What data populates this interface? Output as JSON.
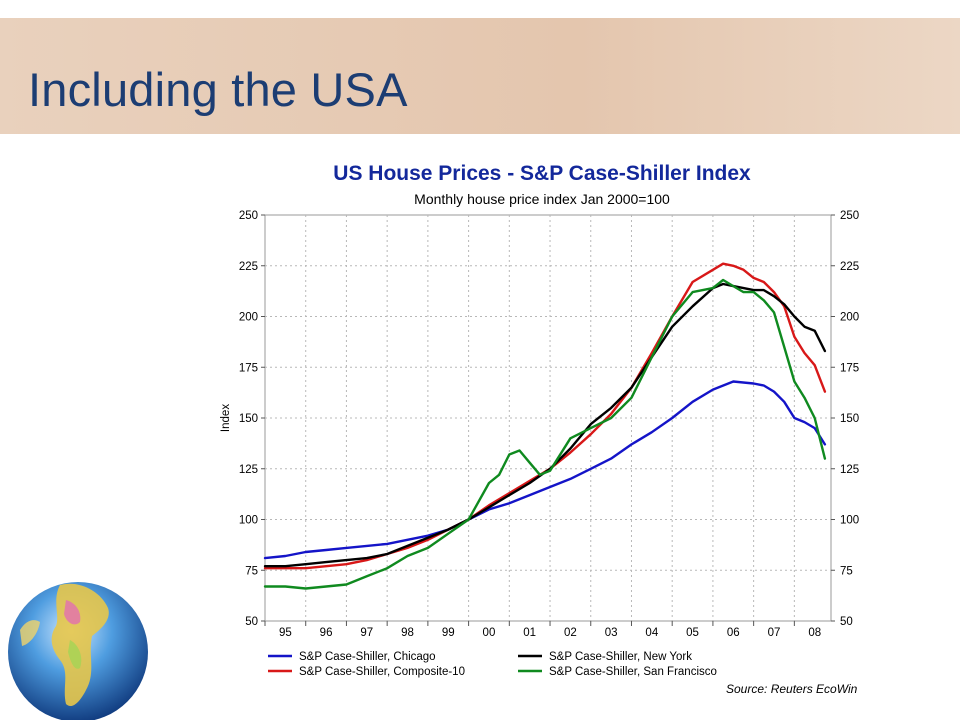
{
  "slide": {
    "title": "Including the USA"
  },
  "colors": {
    "chicago": "#1414c8",
    "composite10": "#d81818",
    "new_york": "#000000",
    "san_francisco": "#0f8a1f",
    "chart_title": "#13289b",
    "slide_title": "#1c3d73"
  },
  "chart_data": {
    "type": "line",
    "title": "US House Prices - S&P Case-Shiller Index",
    "subtitle": "Monthly house price index Jan 2000=100",
    "ylabel": "Index",
    "source": "Source: Reuters EcoWin",
    "ylim": [
      50,
      250
    ],
    "yticks": [
      50,
      75,
      100,
      125,
      150,
      175,
      200,
      225,
      250
    ],
    "xlim": [
      1995.0,
      2008.9
    ],
    "xtick_labels": [
      "95",
      "96",
      "97",
      "98",
      "99",
      "00",
      "01",
      "02",
      "03",
      "04",
      "05",
      "06",
      "07",
      "08"
    ],
    "grid": true,
    "legend_position": "bottom",
    "series": [
      {
        "name": "S&P Case-Shiller, Chicago",
        "color": "#1414c8",
        "x": [
          1995.0,
          1995.5,
          1996.0,
          1996.5,
          1997.0,
          1997.5,
          1998.0,
          1998.5,
          1999.0,
          1999.5,
          2000.0,
          2000.5,
          2001.0,
          2001.5,
          2002.0,
          2002.5,
          2003.0,
          2003.5,
          2004.0,
          2004.5,
          2005.0,
          2005.5,
          2006.0,
          2006.5,
          2007.0,
          2007.25,
          2007.5,
          2007.75,
          2008.0,
          2008.25,
          2008.5,
          2008.75
        ],
        "y": [
          81,
          82,
          84,
          85,
          86,
          87,
          88,
          90,
          92,
          95,
          100,
          105,
          108,
          112,
          116,
          120,
          125,
          130,
          137,
          143,
          150,
          158,
          164,
          168,
          167,
          166,
          163,
          158,
          150,
          148,
          145,
          137
        ]
      },
      {
        "name": "S&P Case-Shiller, Composite-10",
        "color": "#d81818",
        "x": [
          1995.0,
          1995.5,
          1996.0,
          1996.5,
          1997.0,
          1997.5,
          1998.0,
          1998.5,
          1999.0,
          1999.5,
          2000.0,
          2000.5,
          2001.0,
          2001.5,
          2002.0,
          2002.5,
          2003.0,
          2003.5,
          2004.0,
          2004.5,
          2005.0,
          2005.5,
          2006.0,
          2006.25,
          2006.5,
          2006.75,
          2007.0,
          2007.25,
          2007.5,
          2007.75,
          2008.0,
          2008.25,
          2008.5,
          2008.75
        ],
        "y": [
          76,
          76,
          76,
          77,
          78,
          80,
          83,
          86,
          90,
          95,
          100,
          107,
          113,
          119,
          125,
          133,
          142,
          152,
          165,
          182,
          200,
          217,
          223,
          226,
          225,
          223,
          219,
          217,
          212,
          205,
          190,
          182,
          176,
          163
        ]
      },
      {
        "name": "S&P Case-Shiller, New York",
        "color": "#000000",
        "x": [
          1995.0,
          1995.5,
          1996.0,
          1996.5,
          1997.0,
          1997.5,
          1998.0,
          1998.5,
          1999.0,
          1999.5,
          2000.0,
          2000.5,
          2001.0,
          2001.5,
          2002.0,
          2002.5,
          2003.0,
          2003.5,
          2004.0,
          2004.5,
          2005.0,
          2005.5,
          2006.0,
          2006.25,
          2006.5,
          2006.75,
          2007.0,
          2007.25,
          2007.5,
          2007.75,
          2008.0,
          2008.25,
          2008.5,
          2008.75
        ],
        "y": [
          77,
          77,
          78,
          79,
          80,
          81,
          83,
          87,
          91,
          95,
          100,
          106,
          112,
          118,
          125,
          135,
          147,
          155,
          165,
          180,
          195,
          205,
          214,
          216,
          215,
          214,
          213,
          213,
          210,
          206,
          200,
          195,
          193,
          183
        ]
      },
      {
        "name": "S&P Case-Shiller, San Francisco",
        "color": "#0f8a1f",
        "x": [
          1995.0,
          1995.5,
          1996.0,
          1996.5,
          1997.0,
          1997.5,
          1998.0,
          1998.5,
          1999.0,
          1999.5,
          2000.0,
          2000.5,
          2000.75,
          2001.0,
          2001.25,
          2001.5,
          2001.75,
          2002.0,
          2002.5,
          2003.0,
          2003.5,
          2004.0,
          2004.5,
          2005.0,
          2005.5,
          2006.0,
          2006.25,
          2006.5,
          2006.75,
          2007.0,
          2007.25,
          2007.5,
          2007.75,
          2008.0,
          2008.25,
          2008.5,
          2008.75
        ],
        "y": [
          67,
          67,
          66,
          67,
          68,
          72,
          76,
          82,
          86,
          93,
          100,
          118,
          122,
          132,
          134,
          128,
          122,
          124,
          140,
          145,
          150,
          160,
          180,
          200,
          212,
          214,
          218,
          215,
          212,
          212,
          208,
          202,
          185,
          168,
          160,
          150,
          130
        ]
      }
    ]
  }
}
